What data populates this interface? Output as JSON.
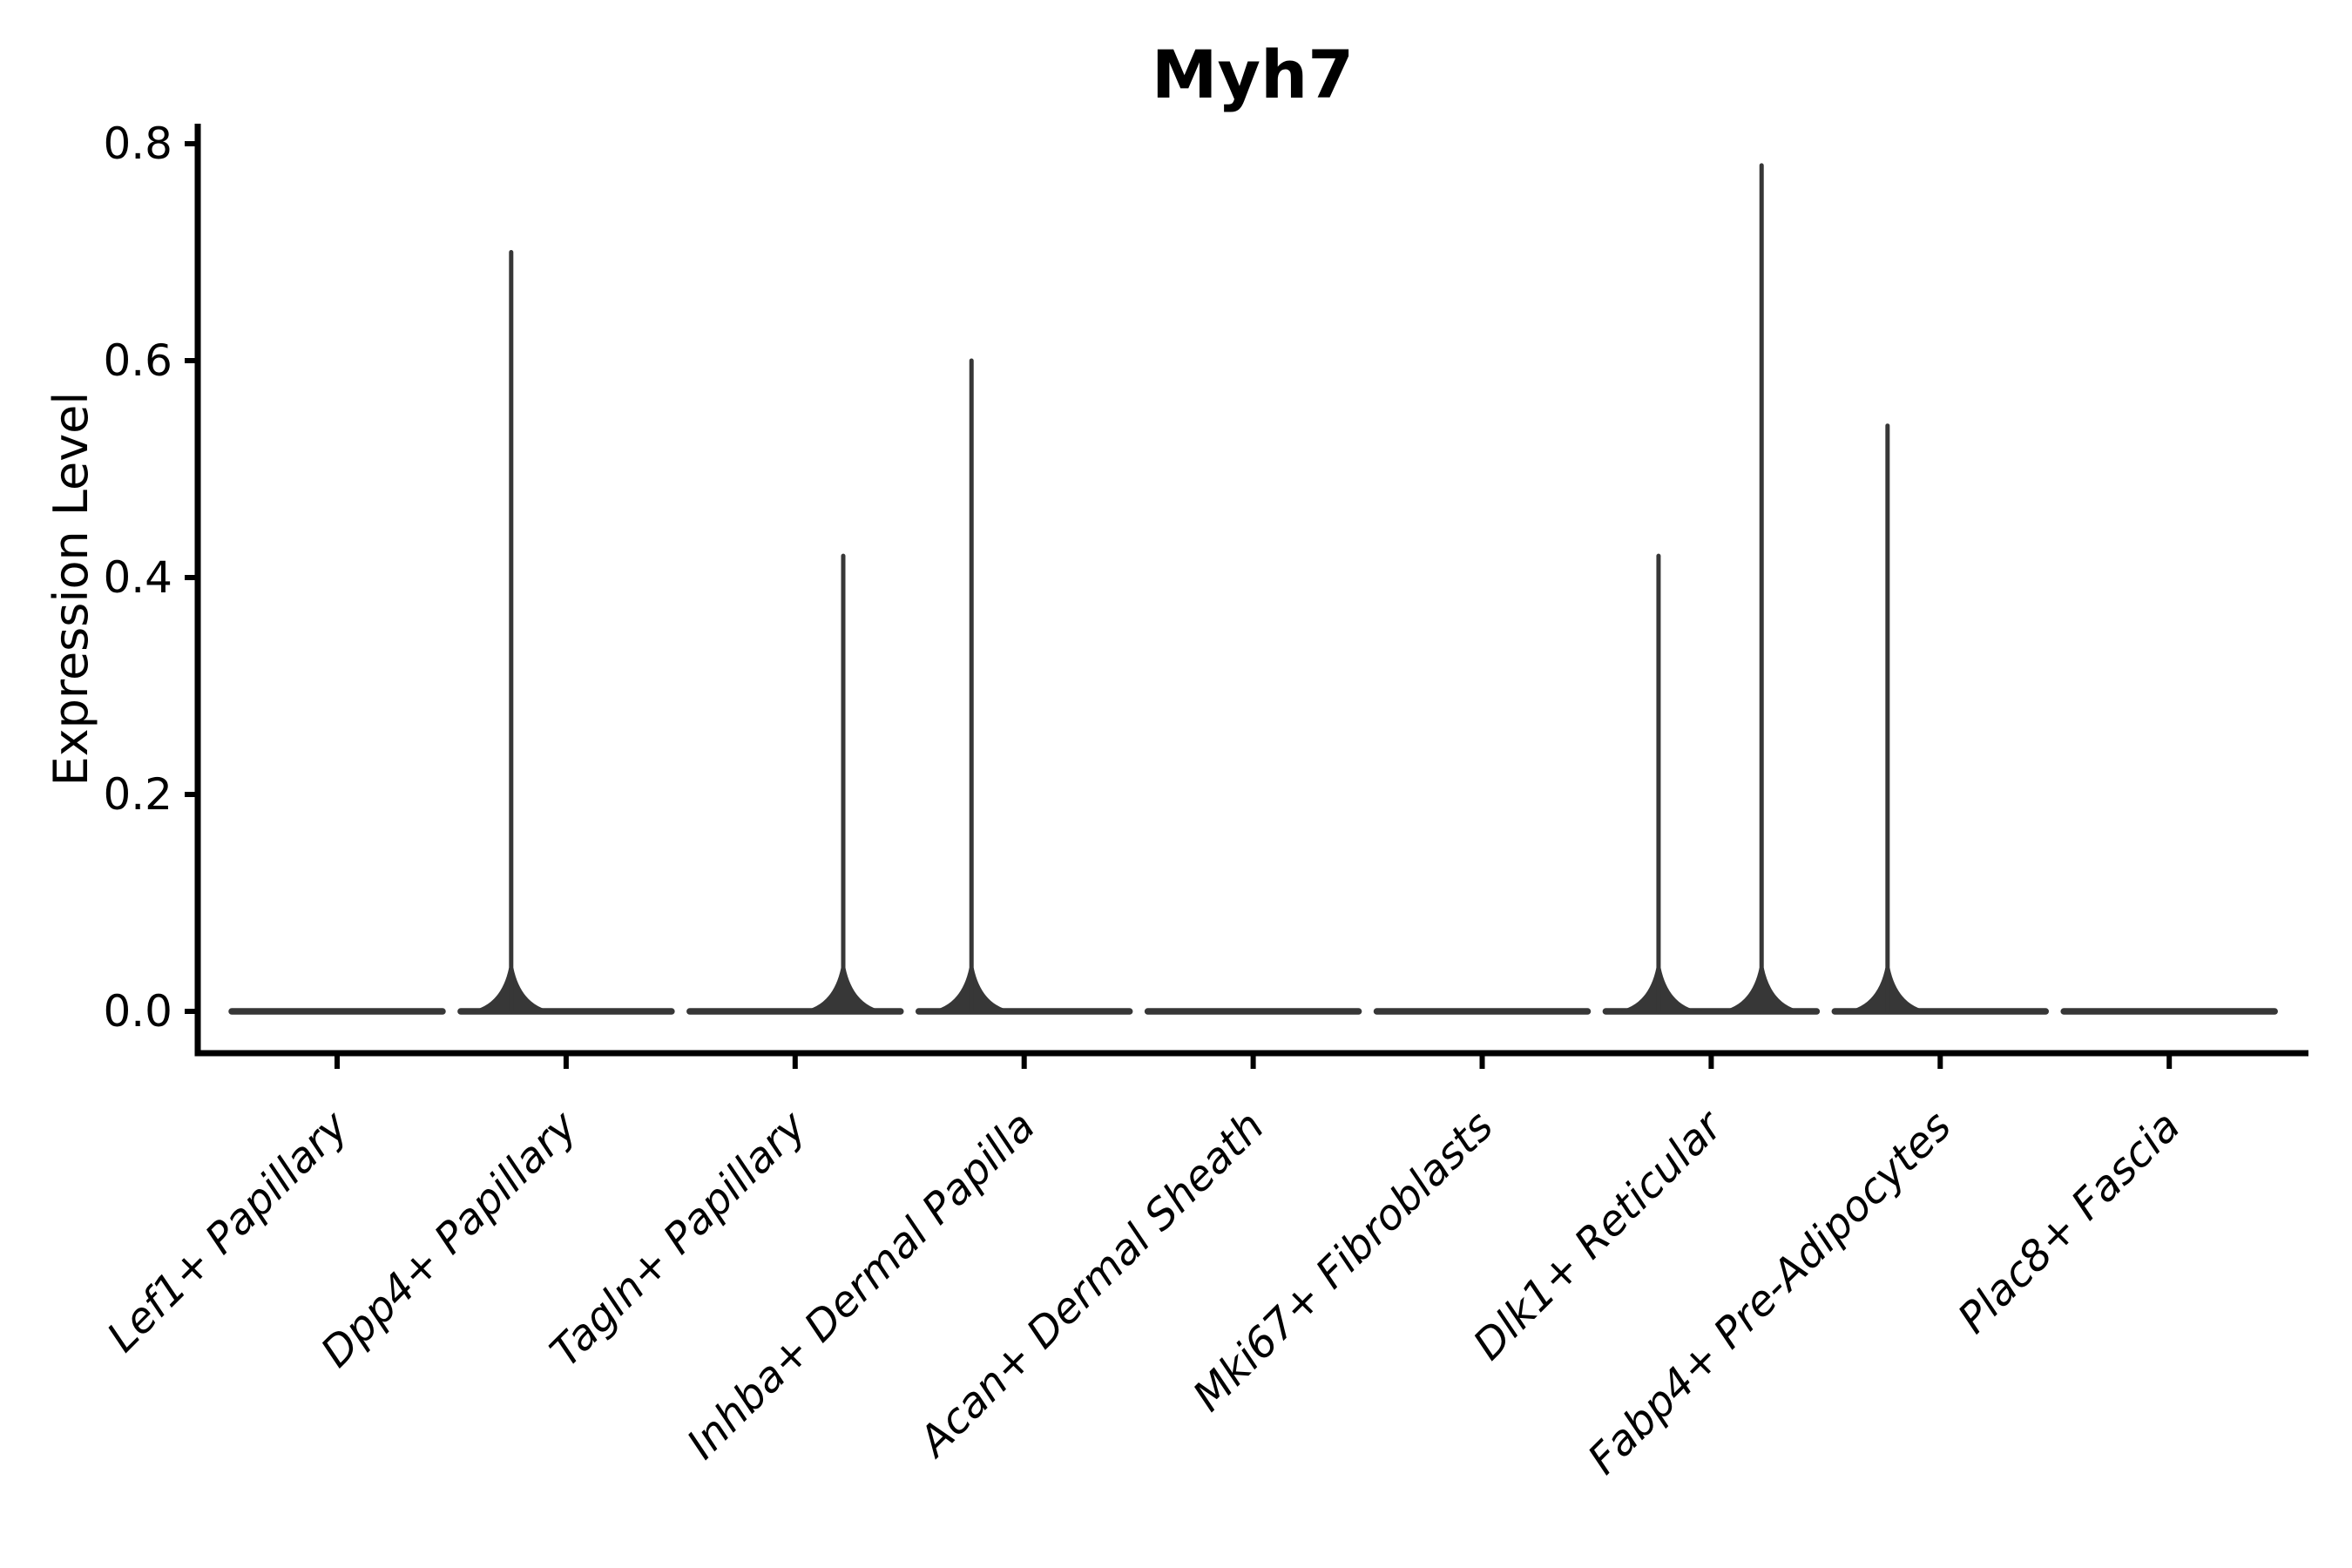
{
  "chart_data": {
    "type": "violin",
    "title": "Myh7",
    "xlabel": "",
    "ylabel": "Expression Level",
    "ylim": [
      0.0,
      0.8
    ],
    "yticks": [
      0.0,
      0.2,
      0.4,
      0.6,
      0.8
    ],
    "ytick_labels": [
      "0.0",
      "0.2",
      "0.4",
      "0.6",
      "0.8"
    ],
    "grid": false,
    "legend": "none",
    "categories": [
      "Lef1+ Papillary",
      "Dpp4+ Papillary",
      "Tagln+ Papillary",
      "Inhba+ Dermal Papilla",
      "Acan+ Dermal Sheath",
      "Mki67+ Fibroblasts",
      "Dlk1+ Reticular",
      "Fabp4+ Pre-Adipocytes",
      "Plac8+ Fascia"
    ],
    "violins": [
      {
        "category": "Lef1+ Papillary",
        "body_value": 0.0,
        "spikes": []
      },
      {
        "category": "Dpp4+ Papillary",
        "body_value": 0.0,
        "spikes": [
          {
            "value": 0.7,
            "x_offset_frac": -0.24
          }
        ]
      },
      {
        "category": "Tagln+ Papillary",
        "body_value": 0.0,
        "spikes": [
          {
            "value": 0.42,
            "x_offset_frac": 0.21
          }
        ]
      },
      {
        "category": "Inhba+ Dermal Papilla",
        "body_value": 0.0,
        "spikes": [
          {
            "value": 0.6,
            "x_offset_frac": -0.23
          }
        ]
      },
      {
        "category": "Acan+ Dermal Sheath",
        "body_value": 0.0,
        "spikes": []
      },
      {
        "category": "Mki67+ Fibroblasts",
        "body_value": 0.0,
        "spikes": []
      },
      {
        "category": "Dlk1+ Reticular",
        "body_value": 0.0,
        "spikes": [
          {
            "value": 0.42,
            "x_offset_frac": -0.23
          },
          {
            "value": 0.78,
            "x_offset_frac": 0.22
          }
        ]
      },
      {
        "category": "Fabp4+ Pre-Adipocytes",
        "body_value": 0.0,
        "spikes": [
          {
            "value": 0.54,
            "x_offset_frac": -0.23
          }
        ]
      },
      {
        "category": "Plac8+ Fascia",
        "body_value": 0.0,
        "spikes": []
      }
    ],
    "colors": {
      "violin": "#373737",
      "axis": "#000000",
      "text": "#000000",
      "background": "#ffffff"
    }
  }
}
